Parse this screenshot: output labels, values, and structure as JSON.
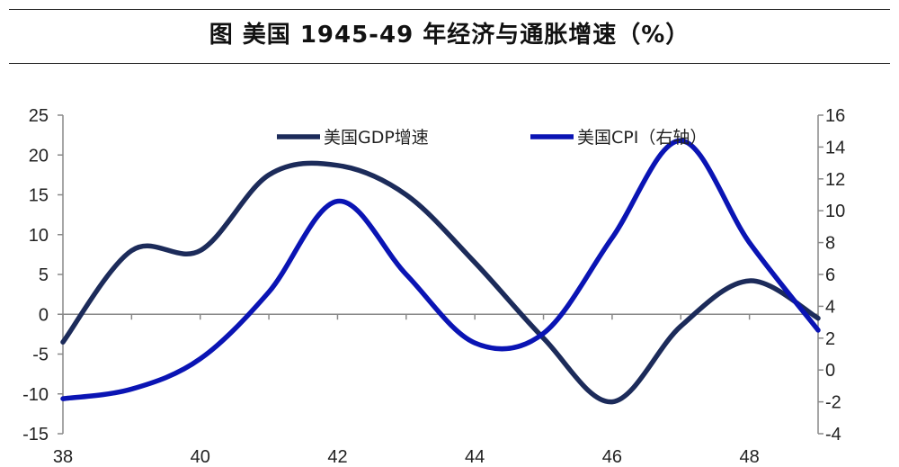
{
  "title": "图  美国 1945-49 年经济与通胀增速（%）",
  "chart_data": {
    "type": "line",
    "title": "图  美国 1945-49 年经济与通胀增速（%）",
    "x": [
      38,
      39,
      40,
      41,
      42,
      43,
      44,
      45,
      46,
      47,
      48,
      49
    ],
    "x_ticks": [
      "38",
      "40",
      "42",
      "44",
      "46",
      "48"
    ],
    "xlim": [
      38,
      49
    ],
    "ylim_left": [
      -15,
      25
    ],
    "ylim_right": [
      -4,
      16
    ],
    "left_ticks": [
      "25",
      "20",
      "15",
      "10",
      "5",
      "0",
      "-5",
      "-10",
      "-15"
    ],
    "right_ticks": [
      "16",
      "14",
      "12",
      "10",
      "8",
      "6",
      "4",
      "2",
      "0",
      "-2",
      "-4"
    ],
    "series": [
      {
        "name": "美国GDP增速",
        "axis": "left",
        "color": "#1c2b5a",
        "values": [
          -3.5,
          8.0,
          8.0,
          17.5,
          18.7,
          15.0,
          6.5,
          -3.0,
          -11.0,
          -1.5,
          4.2,
          -0.5
        ]
      },
      {
        "name": "美国CPI（右轴）",
        "axis": "right",
        "color": "#0a14b4",
        "values": [
          -1.8,
          -1.2,
          0.7,
          4.9,
          10.6,
          6.0,
          1.7,
          2.3,
          8.3,
          14.4,
          8.0,
          2.5
        ]
      }
    ],
    "legend_position": "top",
    "grid": false
  }
}
